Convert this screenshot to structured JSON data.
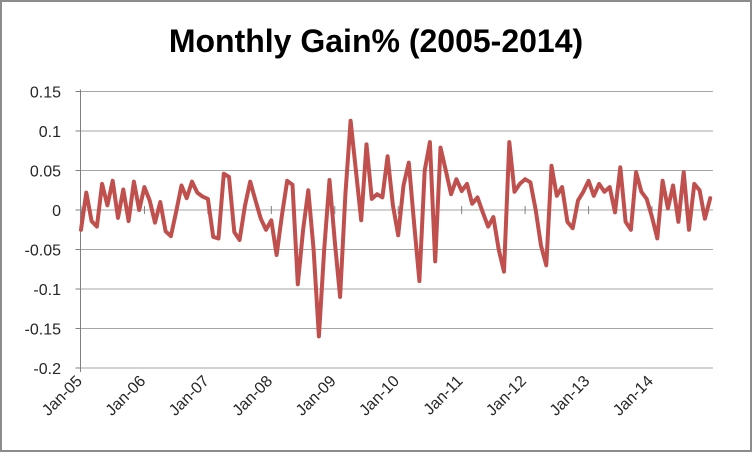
{
  "chart_data": {
    "type": "line",
    "title": "Monthly Gain% (2005-2014)",
    "xlabel": "",
    "ylabel": "",
    "legend": "none",
    "grid": "horizontal",
    "ylim": [
      -0.2,
      0.15
    ],
    "y_ticks": [
      {
        "label": "0.15",
        "value": 0.15
      },
      {
        "label": "0.1",
        "value": 0.1
      },
      {
        "label": "0.05",
        "value": 0.05
      },
      {
        "label": "0",
        "value": 0.0
      },
      {
        "label": "-0.05",
        "value": -0.05
      },
      {
        "label": "-0.1",
        "value": -0.1
      },
      {
        "label": "-0.15",
        "value": -0.15
      },
      {
        "label": "-0.2",
        "value": -0.2
      }
    ],
    "x_tick_labels": [
      "Jan-05",
      "Jan-06",
      "Jan-07",
      "Jan-08",
      "Jan-09",
      "Jan-10",
      "Jan-11",
      "Jan-12",
      "Jan-13",
      "Jan-14"
    ],
    "x_frequency": "monthly",
    "series": [
      {
        "name": "Monthly Gain%",
        "color": "#C0504D",
        "start": "Jan-05",
        "values": [
          -0.025,
          0.022,
          -0.014,
          -0.021,
          0.033,
          0.006,
          0.037,
          -0.01,
          0.026,
          -0.014,
          0.036,
          0.0,
          0.029,
          0.012,
          -0.016,
          0.01,
          -0.027,
          -0.033,
          -0.002,
          0.031,
          0.015,
          0.036,
          0.022,
          0.017,
          0.014,
          -0.034,
          -0.036,
          0.046,
          0.042,
          -0.028,
          -0.038,
          0.005,
          0.036,
          0.012,
          -0.011,
          -0.025,
          -0.013,
          -0.057,
          -0.007,
          0.037,
          0.032,
          -0.094,
          -0.025,
          0.025,
          -0.05,
          -0.16,
          -0.05,
          0.038,
          -0.04,
          -0.11,
          0.02,
          0.113,
          0.05,
          -0.013,
          0.083,
          0.014,
          0.02,
          0.016,
          0.068,
          0.006,
          -0.032,
          0.031,
          0.06,
          -0.017,
          -0.09,
          0.05,
          0.086,
          -0.065,
          0.079,
          0.05,
          0.02,
          0.039,
          0.024,
          0.033,
          0.008,
          0.016,
          -0.003,
          -0.021,
          -0.009,
          -0.05,
          -0.078,
          0.086,
          0.023,
          0.033,
          0.039,
          0.035,
          0.0,
          -0.045,
          -0.07,
          0.056,
          0.018,
          0.029,
          -0.015,
          -0.023,
          0.012,
          0.023,
          0.037,
          0.018,
          0.033,
          0.023,
          0.029,
          -0.003,
          0.054,
          -0.015,
          -0.025,
          0.048,
          0.023,
          0.014,
          -0.009,
          -0.036,
          0.037,
          0.002,
          0.031,
          -0.015,
          0.048,
          -0.025,
          0.033,
          0.025,
          -0.011,
          0.015
        ]
      }
    ],
    "colors": {
      "background": "#FFFFFF",
      "frame_border": "#8C8C8C",
      "gridline": "#A6A6A6",
      "axis": "#808080",
      "tick_label": "#262626",
      "title": "#000000",
      "series": "#C0504D"
    }
  }
}
